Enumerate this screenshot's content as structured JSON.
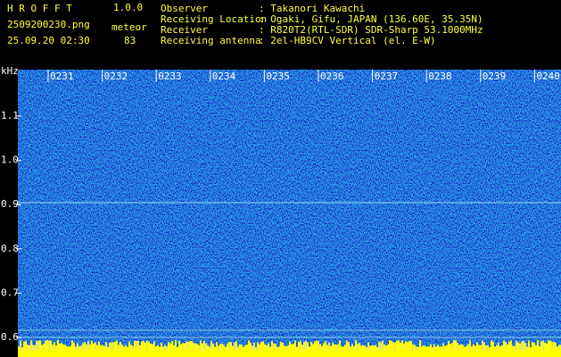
{
  "header": {
    "app_name": "H R O F F T",
    "version": "1.0.0",
    "filename": "2509200230.png",
    "datetime": "25.09.20 02:30",
    "mode_label": "meteor",
    "mode_value": "83",
    "info": [
      {
        "label": "Observer",
        "value": ": Takanori Kawachi"
      },
      {
        "label": "Receiving Location",
        "value": ": Ogaki, Gifu, JAPAN (136.60E, 35.35N)"
      },
      {
        "label": "Receiver",
        "value": ": R820T2(RTL-SDR) SDR-Sharp 53.1000MHz"
      },
      {
        "label": "Receiving antenna",
        "value": ": 2el-HB9CV Vertical (el. E-W)"
      }
    ]
  },
  "spectrogram": {
    "freq_unit": "kHz",
    "freq_labels": [
      "1.1",
      "1.0",
      "0.9",
      "0.8",
      "0.7",
      "0.6"
    ],
    "time_labels": [
      "0231",
      "0232",
      "0233",
      "0234",
      "0235",
      "0236",
      "0237",
      "0238",
      "0239",
      "0240"
    ]
  }
}
